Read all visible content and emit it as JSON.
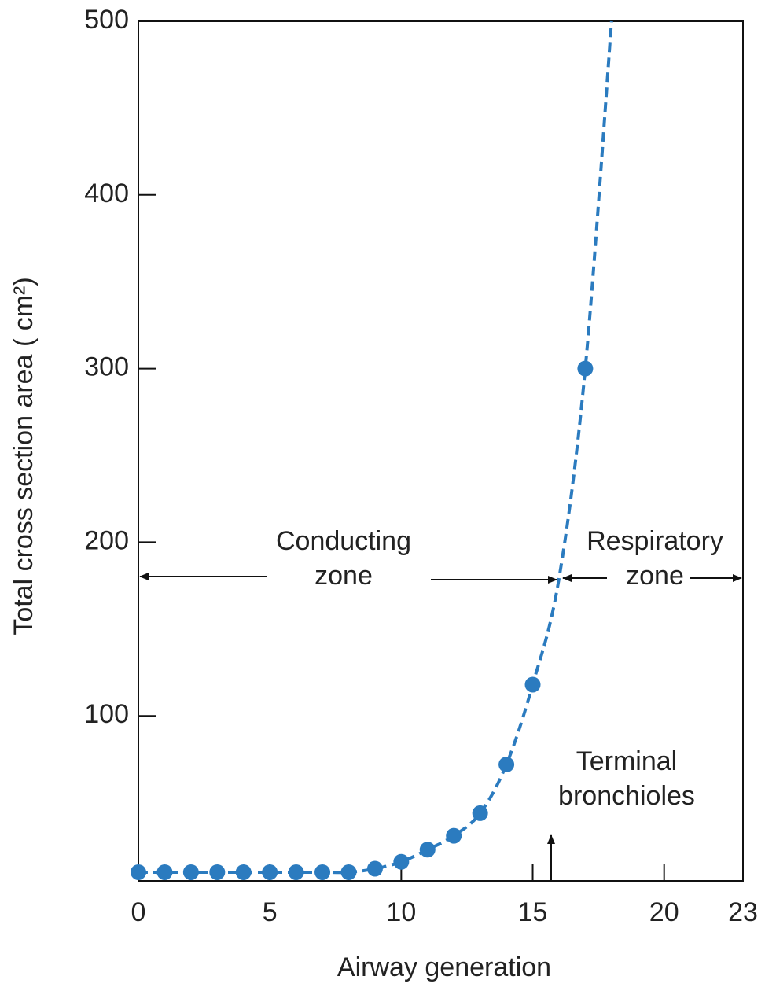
{
  "chart_data": {
    "type": "line",
    "x_label": "Airway generation",
    "y_label": "Total cross section area ( cm²)",
    "xlim": [
      0,
      23
    ],
    "xticks": [
      0,
      5,
      10,
      15,
      20,
      23
    ],
    "ylim": [
      5,
      500
    ],
    "yticks": [
      100,
      200,
      300,
      400,
      500
    ],
    "series": [
      {
        "style": "dashed",
        "color": "#2b7bbf",
        "x": [
          0,
          1,
          2,
          3,
          4,
          5,
          6,
          7,
          8,
          9,
          10,
          11,
          12,
          13,
          14,
          15,
          16,
          17,
          18
        ],
        "values": [
          10,
          10,
          10,
          10,
          10,
          10,
          10,
          10,
          10,
          12,
          16,
          23,
          31,
          44,
          72,
          118,
          179,
          300,
          500
        ]
      },
      {
        "style": "markers",
        "color": "#2b7bbf",
        "x": [
          0,
          1,
          2,
          3,
          4,
          5,
          6,
          7,
          8,
          9,
          10,
          11,
          12,
          13,
          14,
          15,
          17
        ],
        "values": [
          10,
          10,
          10,
          10,
          10,
          10,
          10,
          10,
          10,
          12,
          16,
          23,
          31,
          44,
          72,
          118,
          300
        ]
      }
    ],
    "annotations": [
      {
        "lines": [
          "Conducting",
          "zone"
        ]
      },
      {
        "lines": [
          "Respiratory",
          "zone"
        ]
      },
      {
        "lines": [
          "Terminal",
          "bronchioles"
        ]
      }
    ]
  }
}
